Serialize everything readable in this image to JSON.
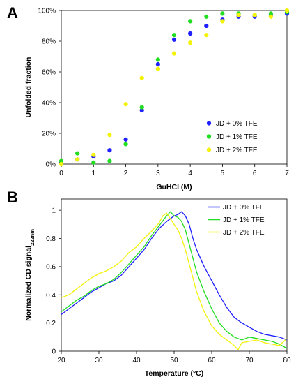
{
  "chart_data": [
    {
      "panel": "A",
      "type": "scatter",
      "xlabel": "GuHCl (M)",
      "ylabel": "Unfolded fraction",
      "xlim": [
        0,
        7
      ],
      "ylim": [
        0,
        100
      ],
      "x_ticks": [
        "0",
        "1",
        "2",
        "3",
        "4",
        "5",
        "6",
        "7"
      ],
      "y_ticks": [
        "0%",
        "20%",
        "40%",
        "60%",
        "80%",
        "100%"
      ],
      "grid": false,
      "legend_position": "bottom-right",
      "series": [
        {
          "name": "JD + 0% TFE",
          "color": "#1f1fff",
          "x": [
            0,
            0.5,
            1,
            1.5,
            2,
            2.5,
            3,
            3.5,
            4,
            4.5,
            5,
            5.5,
            6,
            6.5,
            7
          ],
          "y": [
            1,
            3,
            5,
            9,
            16,
            35,
            65,
            81,
            85,
            90,
            94,
            96,
            96,
            97,
            98
          ]
        },
        {
          "name": "JD + 1% TFE",
          "color": "#22dd22",
          "x": [
            0,
            0.5,
            1,
            1.5,
            2,
            2.5,
            3,
            3.5,
            4,
            4.5,
            5,
            5.5,
            6,
            6.5,
            7
          ],
          "y": [
            2,
            7,
            1,
            2,
            13,
            37,
            68,
            84,
            93,
            96,
            98,
            98,
            97,
            98,
            99
          ]
        },
        {
          "name": "JD + 2% TFE",
          "color": "#f2f20a",
          "x": [
            0,
            0.5,
            1,
            1.5,
            2,
            2.5,
            3,
            3.5,
            4,
            4.5,
            5,
            5.5,
            6,
            6.5,
            7
          ],
          "y": [
            0,
            3,
            6,
            19,
            39,
            56,
            62,
            72,
            79,
            84,
            93,
            97,
            97,
            96,
            100
          ]
        }
      ]
    },
    {
      "panel": "B",
      "type": "line",
      "xlabel": "Temperature (°C)",
      "ylabel_main": "Normalized CD signal",
      "ylabel_sub": "222nm",
      "xlim": [
        20,
        80
      ],
      "ylim": [
        0,
        1.08
      ],
      "x_ticks": [
        "20",
        "30",
        "40",
        "50",
        "60",
        "70",
        "80"
      ],
      "y_ticks": [
        "0",
        "0.2",
        "0.4",
        "0.6",
        "0.8",
        "1"
      ],
      "grid": false,
      "legend_position": "top-right",
      "series": [
        {
          "name": "JD + 0% TFE",
          "color": "#1f1fff",
          "x": [
            20,
            22,
            24,
            26,
            28,
            30,
            32,
            34,
            36,
            38,
            40,
            42,
            44,
            46,
            48,
            50,
            51,
            52,
            53,
            54,
            55,
            56,
            57,
            58,
            60,
            62,
            64,
            66,
            68,
            70,
            72,
            74,
            76,
            78,
            80
          ],
          "y": [
            0.26,
            0.3,
            0.34,
            0.38,
            0.42,
            0.45,
            0.48,
            0.5,
            0.54,
            0.6,
            0.66,
            0.72,
            0.8,
            0.87,
            0.92,
            0.96,
            0.97,
            0.99,
            0.96,
            0.9,
            0.8,
            0.72,
            0.66,
            0.6,
            0.5,
            0.4,
            0.31,
            0.24,
            0.2,
            0.17,
            0.14,
            0.12,
            0.11,
            0.1,
            0.08
          ]
        },
        {
          "name": "JD + 1% TFE",
          "color": "#22dd22",
          "x": [
            20,
            22,
            24,
            26,
            28,
            30,
            32,
            34,
            36,
            38,
            40,
            42,
            44,
            46,
            48,
            49,
            50,
            51,
            52,
            53,
            54,
            55,
            56,
            58,
            60,
            62,
            64,
            66,
            68,
            70,
            72,
            74,
            76,
            78,
            80
          ],
          "y": [
            0.28,
            0.32,
            0.36,
            0.39,
            0.43,
            0.46,
            0.48,
            0.51,
            0.56,
            0.62,
            0.68,
            0.74,
            0.82,
            0.89,
            0.96,
            0.99,
            0.96,
            0.95,
            0.92,
            0.86,
            0.76,
            0.66,
            0.56,
            0.42,
            0.3,
            0.2,
            0.14,
            0.1,
            0.08,
            0.1,
            0.09,
            0.08,
            0.07,
            0.05,
            0.02
          ]
        },
        {
          "name": "JD + 2% TFE",
          "color": "#f2f20a",
          "x": [
            20,
            22,
            24,
            26,
            28,
            30,
            32,
            34,
            36,
            38,
            40,
            42,
            44,
            46,
            47,
            48,
            49,
            50,
            51,
            52,
            53,
            54,
            55,
            56,
            58,
            60,
            62,
            64,
            66,
            67,
            68,
            70,
            72,
            74,
            76,
            78,
            80
          ],
          "y": [
            0.38,
            0.4,
            0.44,
            0.48,
            0.52,
            0.55,
            0.57,
            0.6,
            0.64,
            0.7,
            0.74,
            0.8,
            0.85,
            0.91,
            0.96,
            0.98,
            0.94,
            0.9,
            0.86,
            0.8,
            0.72,
            0.62,
            0.52,
            0.42,
            0.28,
            0.18,
            0.12,
            0.08,
            0.04,
            0.01,
            0.06,
            0.07,
            0.08,
            0.06,
            0.05,
            0.04,
            0.09
          ]
        }
      ]
    }
  ]
}
